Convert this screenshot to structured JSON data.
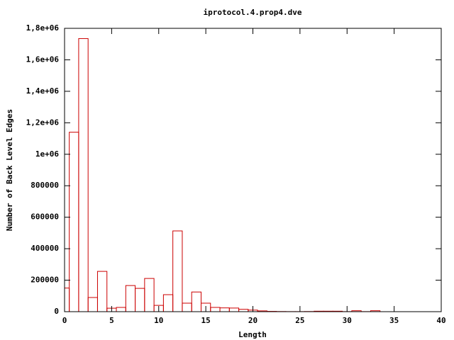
{
  "chart_data": {
    "type": "bar",
    "title": "iprotocol.4.prop4.dve",
    "x_label": "Length",
    "y_label": "Number of Back Level Edges",
    "x": [
      0,
      1,
      2,
      3,
      4,
      5,
      6,
      7,
      8,
      9,
      10,
      11,
      12,
      13,
      14,
      15,
      16,
      17,
      18,
      19,
      20,
      21,
      22,
      23,
      24,
      25,
      26,
      27,
      28,
      29,
      30,
      31,
      32,
      33,
      34,
      35,
      36,
      37,
      38
    ],
    "values": [
      150000,
      1140000,
      1735000,
      90000,
      256000,
      22000,
      27000,
      166000,
      148000,
      211000,
      40000,
      108000,
      513000,
      54000,
      125000,
      54000,
      27000,
      24000,
      23000,
      15000,
      10000,
      5000,
      2000,
      1000,
      500,
      500,
      1000,
      3000,
      3000,
      3000,
      500,
      6000,
      500,
      6000,
      0,
      0,
      0,
      0,
      0
    ],
    "color": "#cc0000",
    "xlim": [
      0,
      40
    ],
    "xticks": [
      0,
      5,
      10,
      15,
      20,
      25,
      30,
      35,
      40
    ],
    "ylim": [
      0,
      1800000
    ],
    "yticks": [
      0,
      200000,
      400000,
      600000,
      800000,
      {
        "value": 1000000,
        "label": "1e+06"
      },
      {
        "value": 1200000,
        "label": "1,2e+06"
      },
      {
        "value": 1400000,
        "label": "1,4e+06"
      },
      {
        "value": 1600000,
        "label": "1,6e+06"
      },
      {
        "value": 1800000,
        "label": "1,8e+06"
      }
    ],
    "grid": false
  }
}
